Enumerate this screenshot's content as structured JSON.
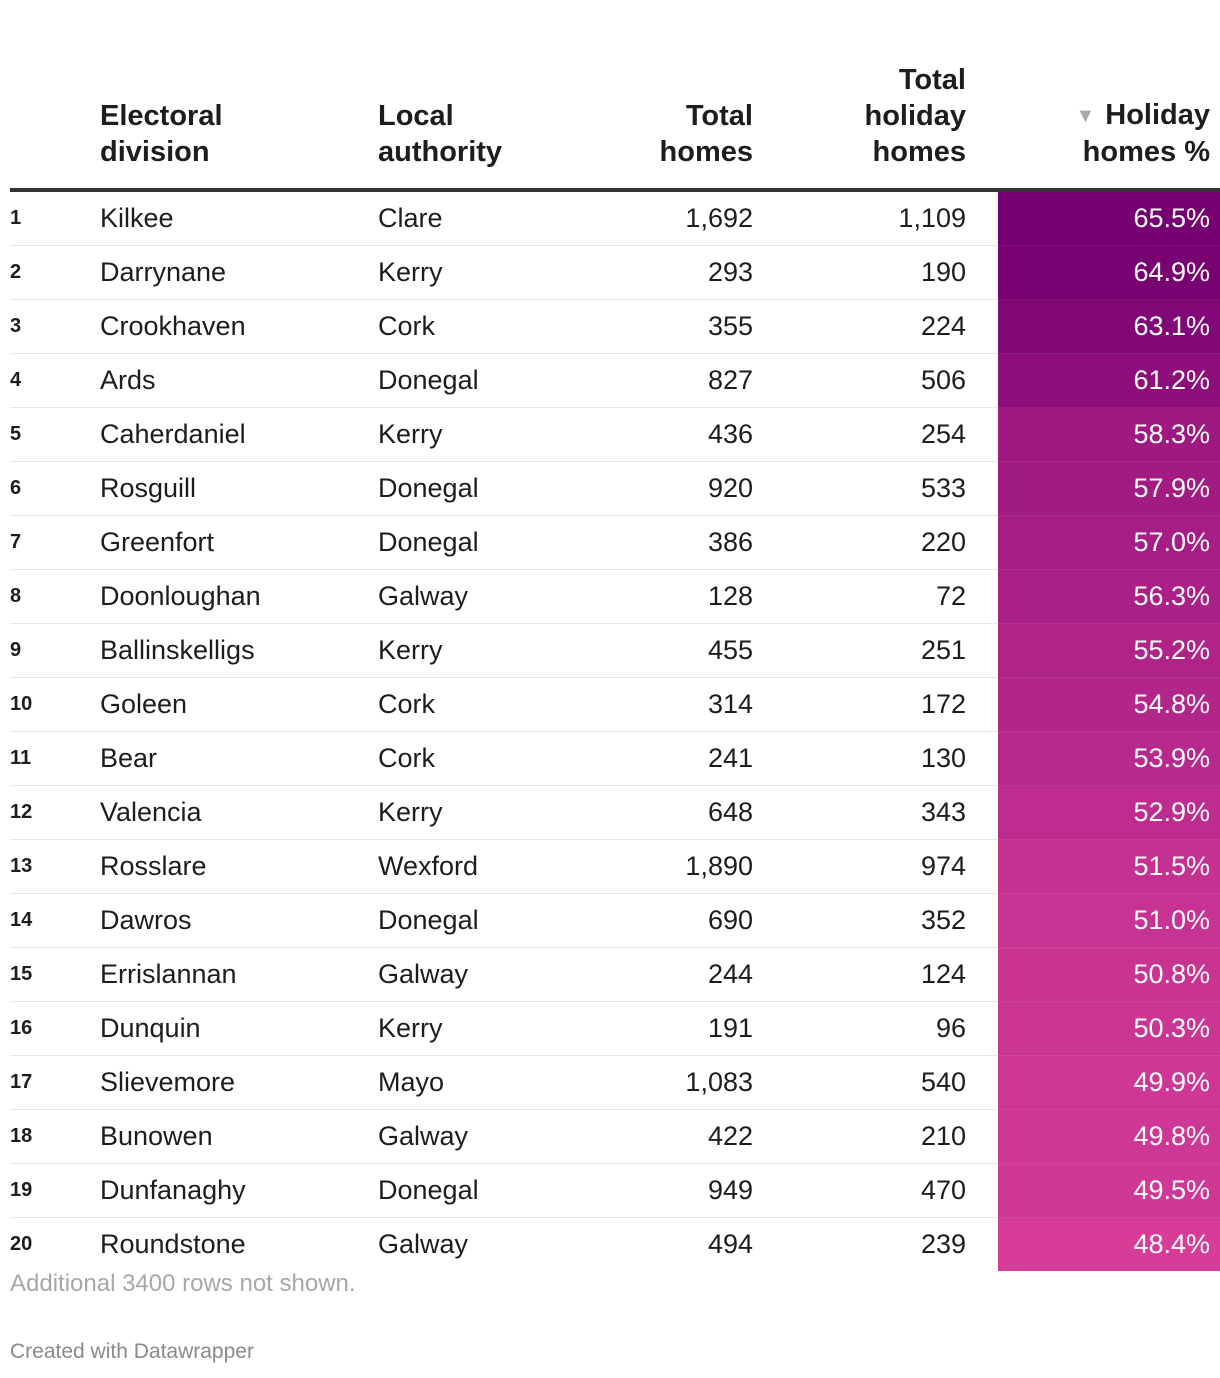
{
  "table": {
    "headers": {
      "rank": "",
      "division": [
        "Electoral",
        "division"
      ],
      "authority": [
        "Local",
        "authority"
      ],
      "total_homes": [
        "Total",
        "homes"
      ],
      "holiday_homes": [
        "Total",
        "holiday",
        "homes"
      ],
      "pct": [
        "Holiday",
        "homes %"
      ],
      "sort_indicator": "▼"
    },
    "color_scale": {
      "high": "#760072",
      "low": "#d63c98"
    },
    "note": "Additional 3400 rows not shown.",
    "credit": "Created with Datawrapper"
  },
  "chart_data": {
    "type": "table",
    "columns": [
      "",
      "Electoral division",
      "Local authority",
      "Total homes",
      "Total holiday homes",
      "Holiday homes %"
    ],
    "sorted_by": "Holiday homes %",
    "sort_order": "descending",
    "rows": [
      {
        "rank": "1",
        "division": "Kilkee",
        "authority": "Clare",
        "total_homes": "1,692",
        "holiday_homes": "1,109",
        "pct": "65.5%",
        "pct_value": 65.5
      },
      {
        "rank": "2",
        "division": "Darrynane",
        "authority": "Kerry",
        "total_homes": "293",
        "holiday_homes": "190",
        "pct": "64.9%",
        "pct_value": 64.9
      },
      {
        "rank": "3",
        "division": "Crookhaven",
        "authority": "Cork",
        "total_homes": "355",
        "holiday_homes": "224",
        "pct": "63.1%",
        "pct_value": 63.1
      },
      {
        "rank": "4",
        "division": "Ards",
        "authority": "Donegal",
        "total_homes": "827",
        "holiday_homes": "506",
        "pct": "61.2%",
        "pct_value": 61.2
      },
      {
        "rank": "5",
        "division": "Caherdaniel",
        "authority": "Kerry",
        "total_homes": "436",
        "holiday_homes": "254",
        "pct": "58.3%",
        "pct_value": 58.3
      },
      {
        "rank": "6",
        "division": "Rosguill",
        "authority": "Donegal",
        "total_homes": "920",
        "holiday_homes": "533",
        "pct": "57.9%",
        "pct_value": 57.9
      },
      {
        "rank": "7",
        "division": "Greenfort",
        "authority": "Donegal",
        "total_homes": "386",
        "holiday_homes": "220",
        "pct": "57.0%",
        "pct_value": 57.0
      },
      {
        "rank": "8",
        "division": "Doonloughan",
        "authority": "Galway",
        "total_homes": "128",
        "holiday_homes": "72",
        "pct": "56.3%",
        "pct_value": 56.3
      },
      {
        "rank": "9",
        "division": "Ballinskelligs",
        "authority": "Kerry",
        "total_homes": "455",
        "holiday_homes": "251",
        "pct": "55.2%",
        "pct_value": 55.2
      },
      {
        "rank": "10",
        "division": "Goleen",
        "authority": "Cork",
        "total_homes": "314",
        "holiday_homes": "172",
        "pct": "54.8%",
        "pct_value": 54.8
      },
      {
        "rank": "11",
        "division": "Bear",
        "authority": "Cork",
        "total_homes": "241",
        "holiday_homes": "130",
        "pct": "53.9%",
        "pct_value": 53.9
      },
      {
        "rank": "12",
        "division": "Valencia",
        "authority": "Kerry",
        "total_homes": "648",
        "holiday_homes": "343",
        "pct": "52.9%",
        "pct_value": 52.9
      },
      {
        "rank": "13",
        "division": "Rosslare",
        "authority": "Wexford",
        "total_homes": "1,890",
        "holiday_homes": "974",
        "pct": "51.5%",
        "pct_value": 51.5
      },
      {
        "rank": "14",
        "division": "Dawros",
        "authority": "Donegal",
        "total_homes": "690",
        "holiday_homes": "352",
        "pct": "51.0%",
        "pct_value": 51.0
      },
      {
        "rank": "15",
        "division": "Errislannan",
        "authority": "Galway",
        "total_homes": "244",
        "holiday_homes": "124",
        "pct": "50.8%",
        "pct_value": 50.8
      },
      {
        "rank": "16",
        "division": "Dunquin",
        "authority": "Kerry",
        "total_homes": "191",
        "holiday_homes": "96",
        "pct": "50.3%",
        "pct_value": 50.3
      },
      {
        "rank": "17",
        "division": "Slievemore",
        "authority": "Mayo",
        "total_homes": "1,083",
        "holiday_homes": "540",
        "pct": "49.9%",
        "pct_value": 49.9
      },
      {
        "rank": "18",
        "division": "Bunowen",
        "authority": "Galway",
        "total_homes": "422",
        "holiday_homes": "210",
        "pct": "49.8%",
        "pct_value": 49.8
      },
      {
        "rank": "19",
        "division": "Dunfanaghy",
        "authority": "Donegal",
        "total_homes": "949",
        "holiday_homes": "470",
        "pct": "49.5%",
        "pct_value": 49.5
      },
      {
        "rank": "20",
        "division": "Roundstone",
        "authority": "Galway",
        "total_homes": "494",
        "holiday_homes": "239",
        "pct": "48.4%",
        "pct_value": 48.4
      }
    ]
  }
}
